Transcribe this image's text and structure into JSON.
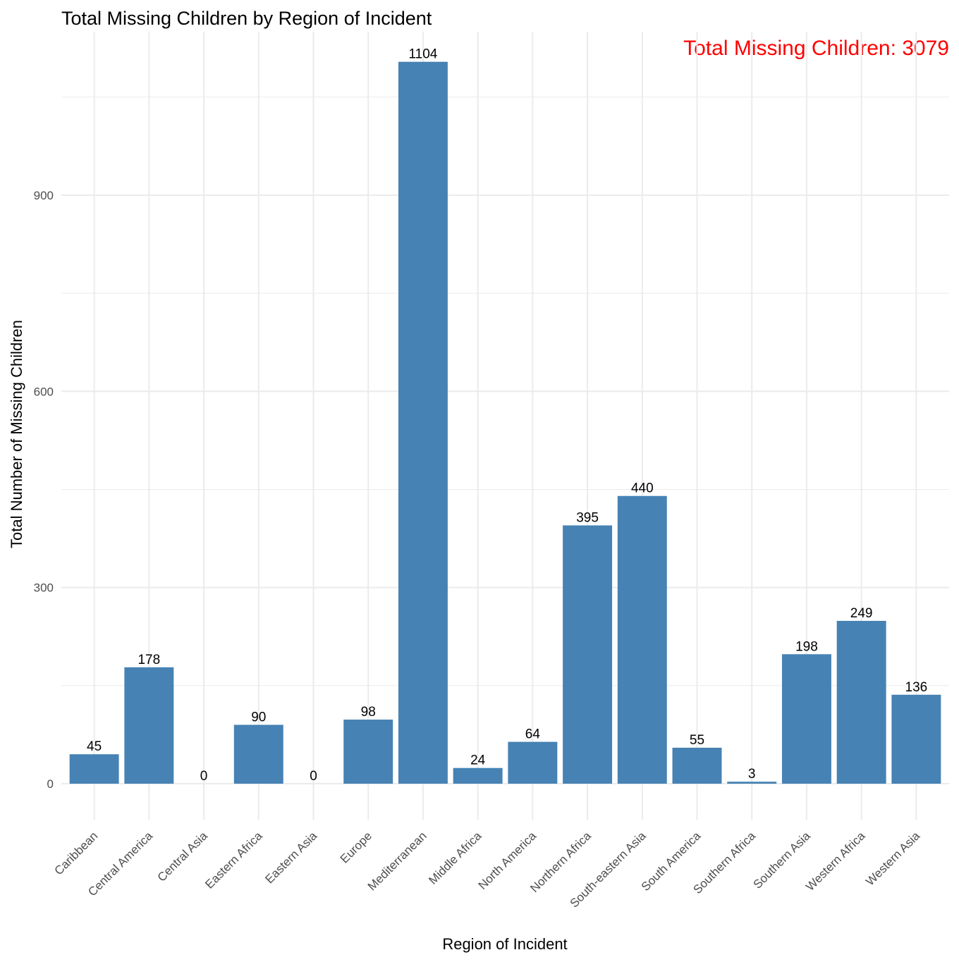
{
  "chart_data": {
    "type": "bar",
    "title": "Total Missing Children by Region of Incident",
    "annotation": "Total Missing Children: 3079",
    "xlabel": "Region of Incident",
    "ylabel": "Total Number of Missing Children",
    "categories": [
      "Caribbean",
      "Central America",
      "Central Asia",
      "Eastern Africa",
      "Eastern Asia",
      "Europe",
      "Mediterranean",
      "Middle Africa",
      "North America",
      "Northern Africa",
      "South-eastern Asia",
      "South America",
      "Southern Africa",
      "Southern Asia",
      "Western Africa",
      "Western Asia"
    ],
    "values": [
      45,
      178,
      0,
      90,
      0,
      98,
      1104,
      24,
      64,
      395,
      440,
      55,
      3,
      198,
      249,
      136
    ],
    "yticks": [
      0,
      300,
      600,
      900
    ],
    "ylim": [
      -55,
      1150
    ],
    "grid": true,
    "legend": "none"
  },
  "colors": {
    "bar": "#4682B4",
    "annotation": "#FF0000",
    "grid": "#EBEBEB"
  }
}
